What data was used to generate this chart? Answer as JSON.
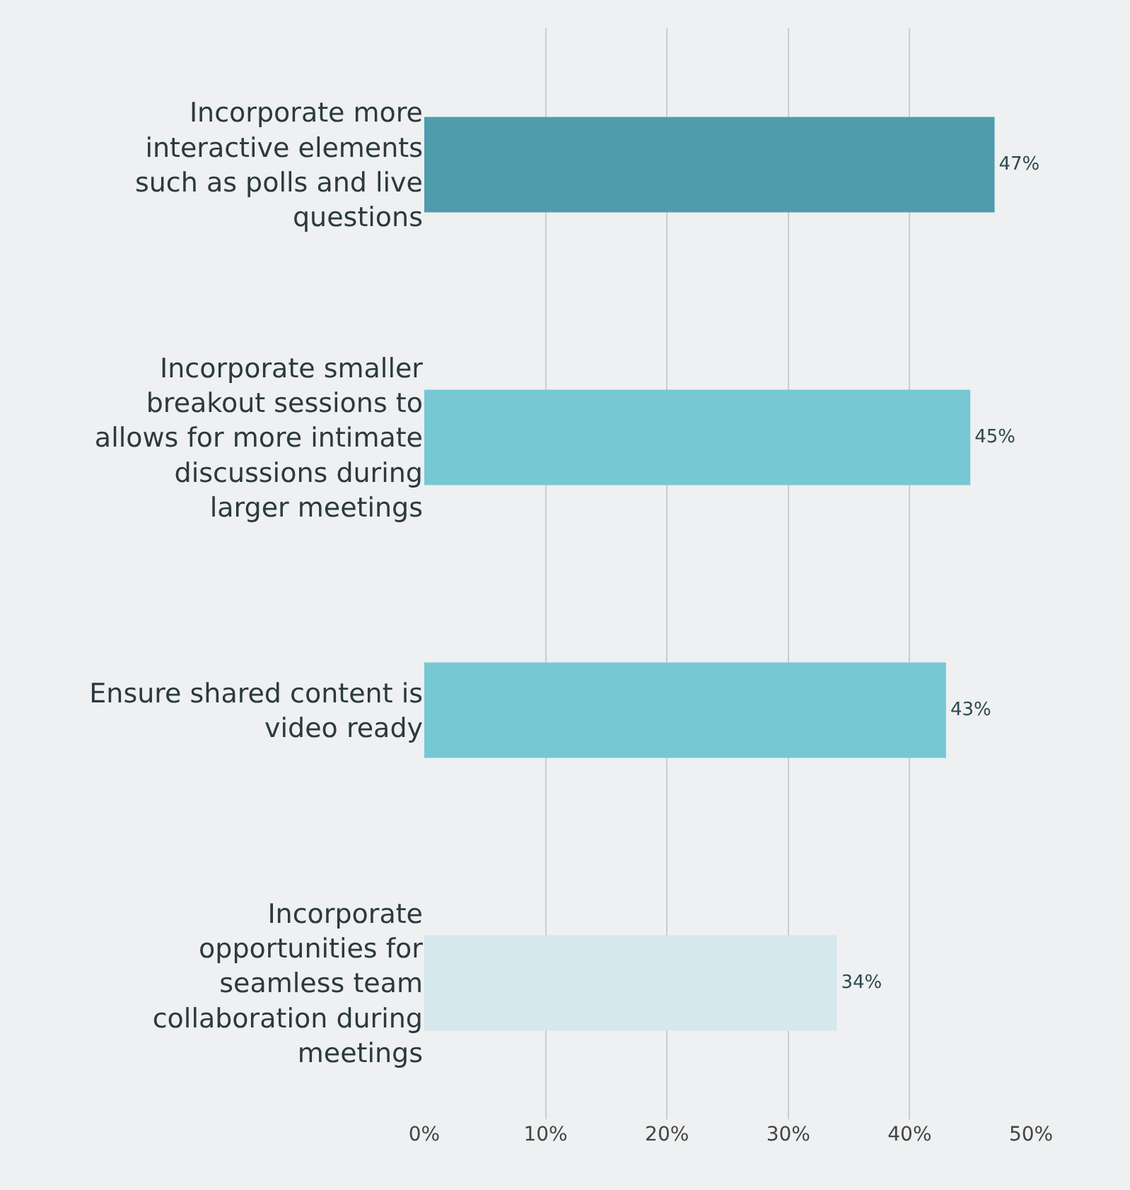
{
  "chart_data": {
    "type": "bar",
    "orientation": "horizontal",
    "categories": [
      "Incorporate more interactive elements such as polls and live questions",
      "Incorporate smaller breakout sessions to allows for more intimate discussions during larger meetings",
      "Ensure shared content is video ready",
      "Incorporate opportunities for seamless team collaboration during meetings"
    ],
    "values": [
      47,
      45,
      43,
      34
    ],
    "colors": [
      "#4e9cab",
      "#76c8d4",
      "#76c8d4",
      "#d4e8ed"
    ],
    "value_labels": [
      "47%",
      "45%",
      "43%",
      "34%"
    ],
    "xlim": [
      0,
      50
    ],
    "xticks": [
      {
        "value": 0,
        "label": "0%"
      },
      {
        "value": 10,
        "label": "10%"
      },
      {
        "value": 20,
        "label": "20%"
      },
      {
        "value": 30,
        "label": "30%"
      },
      {
        "value": 40,
        "label": "40%"
      },
      {
        "value": 50,
        "label": "50%"
      }
    ],
    "grid": "x"
  }
}
